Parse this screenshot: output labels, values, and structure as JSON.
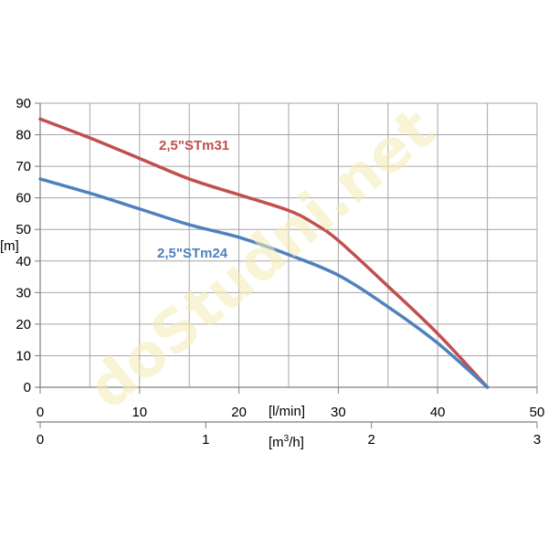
{
  "chart_data": {
    "type": "line",
    "ylabel": "[m]",
    "xlabel": "[l/min]",
    "x2label": "[m³/h]",
    "xlim": [
      0,
      50
    ],
    "ylim": [
      0,
      90
    ],
    "x_ticks": [
      "0",
      "10",
      "20",
      "30",
      "40",
      "50"
    ],
    "y_ticks": [
      "0",
      "10",
      "20",
      "30",
      "40",
      "50",
      "60",
      "70",
      "80",
      "90"
    ],
    "x2_lim": [
      0,
      3
    ],
    "x2_ticks": [
      "0",
      "1",
      "2",
      "3"
    ],
    "grid": true,
    "series": [
      {
        "name": "2,5\"STm31",
        "color": "#c0504d",
        "x": [
          0,
          5,
          10,
          15,
          20,
          25,
          27.5,
          30,
          35,
          40,
          45
        ],
        "y": [
          85,
          79,
          72.5,
          66,
          61,
          56,
          52,
          46.5,
          32,
          17,
          0
        ]
      },
      {
        "name": "2,5\"STm24",
        "color": "#4f81bd",
        "x": [
          0,
          5,
          10,
          15,
          20,
          25,
          30,
          35,
          40,
          45
        ],
        "y": [
          66,
          61.5,
          56.5,
          51.5,
          47.5,
          42,
          35.5,
          25.5,
          14,
          0
        ]
      }
    ]
  },
  "watermark": "doStudni.net"
}
